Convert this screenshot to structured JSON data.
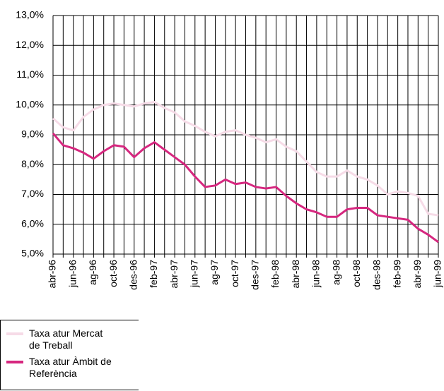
{
  "chart_data": {
    "type": "line",
    "categories": [
      "abr-96",
      null,
      "jun-96",
      null,
      "ag-96",
      null,
      "oct-96",
      null,
      "des-96",
      null,
      "feb-97",
      null,
      "abr-97",
      null,
      "jun-97",
      null,
      "ag-97",
      null,
      "oct-97",
      null,
      "des-97",
      null,
      "feb-98",
      null,
      "abr-98",
      null,
      "jun-98",
      null,
      "ag-98",
      null,
      "oct-98",
      null,
      "des-98",
      null,
      "feb-99",
      null,
      "abr-99",
      null,
      "jun-99"
    ],
    "series": [
      {
        "name": "Taxa atur Mercat de Treball",
        "color": "#f6dbe7",
        "values": [
          9.55,
          9.25,
          9.15,
          9.6,
          9.85,
          10.0,
          10.05,
          10.0,
          9.95,
          10.05,
          10.1,
          9.9,
          9.75,
          9.45,
          9.3,
          9.1,
          8.95,
          9.1,
          9.15,
          9.0,
          8.9,
          8.75,
          8.85,
          8.6,
          8.45,
          8.1,
          7.75,
          7.6,
          7.6,
          7.8,
          7.6,
          7.5,
          7.3,
          7.0,
          7.1,
          7.05,
          6.95,
          6.35,
          6.3
        ]
      },
      {
        "name": "Taxa atur Àmbit de Referència",
        "color": "#d6277f",
        "values": [
          9.05,
          8.65,
          8.55,
          8.4,
          8.2,
          8.45,
          8.65,
          8.6,
          8.25,
          8.55,
          8.75,
          8.5,
          8.25,
          8.0,
          7.6,
          7.25,
          7.3,
          7.5,
          7.35,
          7.4,
          7.25,
          7.2,
          7.25,
          6.95,
          6.7,
          6.5,
          6.4,
          6.25,
          6.25,
          6.5,
          6.55,
          6.55,
          6.3,
          6.25,
          6.2,
          6.15,
          5.85,
          5.65,
          5.4
        ]
      }
    ],
    "ylim": [
      5,
      13
    ],
    "yticks": [
      {
        "value": 5,
        "label": "5,0%"
      },
      {
        "value": 6,
        "label": "6,0%"
      },
      {
        "value": 7,
        "label": "7,0%"
      },
      {
        "value": 8,
        "label": "8,0%"
      },
      {
        "value": 9,
        "label": "9,0%"
      },
      {
        "value": 10,
        "label": "10,0%"
      },
      {
        "value": 11,
        "label": "11,0%"
      },
      {
        "value": 12,
        "label": "12,0%"
      },
      {
        "value": 13,
        "label": "13,0%"
      }
    ],
    "grid": true,
    "legend": "bottom-left"
  }
}
